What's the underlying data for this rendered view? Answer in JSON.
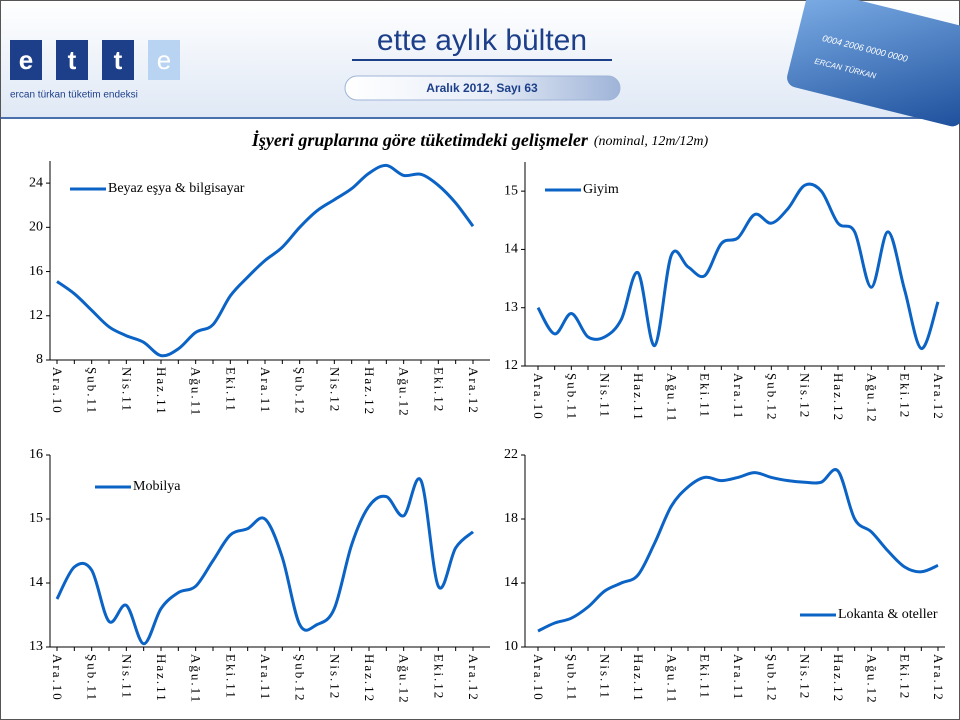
{
  "header": {
    "logo_letters": [
      "e",
      "t",
      "t",
      "e"
    ],
    "logo_caption": "ercan türkan tüketim endeksi",
    "title": "ette aylık bülten",
    "issue": "Aralık 2012, Sayı  63",
    "card_number": "0004 2006 0000 0000",
    "card_name": "ERCAN TÜRKAN"
  },
  "heading": "İşyeri gruplarına göre tüketimdeki gelişmeler",
  "heading_note": "(nominal, 12m/12m)",
  "chart_data": [
    {
      "type": "line",
      "legend": "upper left",
      "categories": [
        "Ara.10",
        null,
        "Şub.11",
        null,
        "Nis.11",
        null,
        "Haz.11",
        null,
        "Ağu.11",
        null,
        "Eki.11",
        null,
        "Ara.11",
        null,
        "Şub.12",
        null,
        "Nis.12",
        null,
        "Haz.12",
        null,
        "Ağu.12",
        null,
        "Eki.12",
        null,
        "Ara.12"
      ],
      "series": [
        {
          "name": "Beyaz eşya & bilgisayar",
          "color": "#0b63c5",
          "values": [
            15.1,
            14.0,
            12.5,
            11.0,
            10.2,
            9.6,
            8.4,
            9.0,
            10.5,
            11.2,
            13.8,
            15.5,
            17.0,
            18.2,
            20.0,
            21.5,
            22.5,
            23.5,
            24.9,
            25.6,
            24.7,
            24.8,
            23.8,
            22.2,
            20.1
          ]
        }
      ],
      "ylim": [
        8,
        26
      ],
      "yticks": [
        8,
        12,
        16,
        20,
        24
      ]
    },
    {
      "type": "line",
      "legend": "upper left",
      "categories": [
        "Ara.10",
        null,
        "Şub.11",
        null,
        "Nis.11",
        null,
        "Haz.11",
        null,
        "Ağu.11",
        null,
        "Eki.11",
        null,
        "Ara.11",
        null,
        "Şub.12",
        null,
        "Nis.12",
        null,
        "Haz.12",
        null,
        "Ağu.12",
        null,
        "Eki.12",
        null,
        "Ara.12"
      ],
      "series": [
        {
          "name": "Giyim",
          "color": "#0b63c5",
          "values": [
            13.0,
            12.55,
            12.9,
            12.5,
            12.5,
            12.8,
            13.6,
            12.35,
            13.9,
            13.7,
            13.55,
            14.1,
            14.2,
            14.6,
            14.45,
            14.7,
            15.1,
            15.0,
            14.45,
            14.3,
            13.35,
            14.3,
            13.3,
            12.3,
            13.1
          ]
        }
      ],
      "ylim": [
        12,
        15.5
      ],
      "yticks": [
        12,
        13,
        14,
        15
      ]
    },
    {
      "type": "line",
      "legend": "upper left",
      "categories": [
        "Ara.10",
        null,
        "Şub.11",
        null,
        "Nis.11",
        null,
        "Haz.11",
        null,
        "Ağu.11",
        null,
        "Eki.11",
        null,
        "Ara.11",
        null,
        "Şub.12",
        null,
        "Nis.12",
        null,
        "Haz.12",
        null,
        "Ağu.12",
        null,
        "Eki.12",
        null,
        "Ara.12"
      ],
      "series": [
        {
          "name": "Mobilya",
          "color": "#0b63c5",
          "values": [
            13.75,
            14.25,
            14.2,
            13.4,
            13.65,
            13.05,
            13.6,
            13.85,
            13.95,
            14.35,
            14.75,
            14.85,
            15.0,
            14.4,
            13.35,
            13.35,
            13.6,
            14.6,
            15.2,
            15.35,
            15.05,
            15.6,
            13.95,
            14.55,
            14.8
          ]
        }
      ],
      "ylim": [
        13,
        16
      ],
      "yticks": [
        13,
        14,
        15,
        16
      ]
    },
    {
      "type": "line",
      "legend": "lower right",
      "categories": [
        "Ara.10",
        null,
        "Şub.11",
        null,
        "Nis.11",
        null,
        "Haz.11",
        null,
        "Ağu.11",
        null,
        "Eki.11",
        null,
        "Ara.11",
        null,
        "Şub.12",
        null,
        "Nis.12",
        null,
        "Haz.12",
        null,
        "Ağu.12",
        null,
        "Eki.12",
        null,
        "Ara.12"
      ],
      "series": [
        {
          "name": "Lokanta & oteller",
          "color": "#0b63c5",
          "values": [
            11.0,
            11.5,
            11.8,
            12.5,
            13.5,
            14.0,
            14.5,
            16.5,
            18.8,
            20.0,
            20.6,
            20.4,
            20.6,
            20.9,
            20.6,
            20.4,
            20.3,
            20.3,
            21.0,
            18.0,
            17.2,
            16.0,
            15.0,
            14.7,
            15.1
          ]
        }
      ],
      "ylim": [
        10,
        22
      ],
      "yticks": [
        10,
        14,
        18,
        22
      ]
    }
  ]
}
